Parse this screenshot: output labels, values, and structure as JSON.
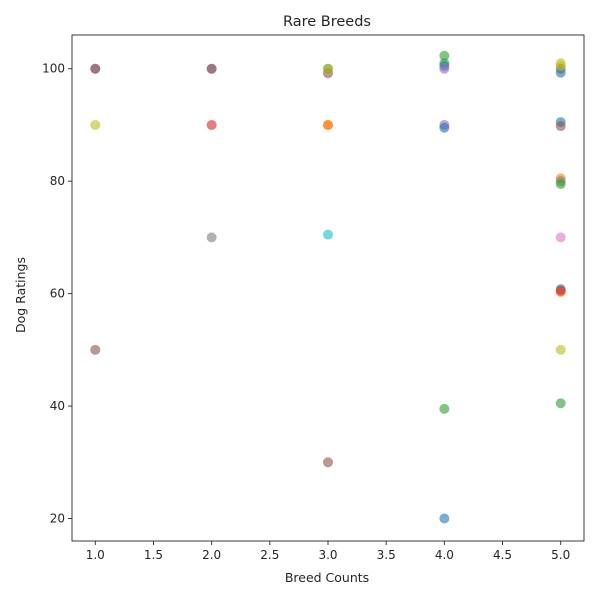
{
  "chart_data": {
    "type": "scatter",
    "title": "Rare Breeds",
    "xlabel": "Breed Counts",
    "ylabel": "Dog Ratings",
    "xlim": [
      0.8,
      5.2
    ],
    "ylim": [
      16,
      106
    ],
    "xticks": [
      1.0,
      1.5,
      2.0,
      2.5,
      3.0,
      3.5,
      4.0,
      4.5,
      5.0
    ],
    "xtick_labels": [
      "1.0",
      "1.5",
      "2.0",
      "2.5",
      "3.0",
      "3.5",
      "4.0",
      "4.5",
      "5.0"
    ],
    "yticks": [
      20,
      40,
      60,
      80,
      100
    ],
    "ytick_labels": [
      "20",
      "40",
      "60",
      "80",
      "100"
    ],
    "grid": false,
    "legend": false,
    "marker_alpha": 0.6,
    "points": [
      {
        "x": 1.0,
        "y": 100,
        "color": "#9467bd"
      },
      {
        "x": 1.0,
        "y": 100,
        "color": "#8c564b"
      },
      {
        "x": 1.0,
        "y": 90,
        "color": "#bcbd22"
      },
      {
        "x": 1.0,
        "y": 50,
        "color": "#8c564b"
      },
      {
        "x": 2.0,
        "y": 100,
        "color": "#9467bd"
      },
      {
        "x": 2.0,
        "y": 100,
        "color": "#8c564b"
      },
      {
        "x": 2.0,
        "y": 90,
        "color": "#d62728"
      },
      {
        "x": 2.0,
        "y": 70,
        "color": "#7f7f7f"
      },
      {
        "x": 3.0,
        "y": 100,
        "color": "#2ca02c"
      },
      {
        "x": 3.0,
        "y": 99.2,
        "color": "#8c564b"
      },
      {
        "x": 3.0,
        "y": 100,
        "color": "#bcbd22"
      },
      {
        "x": 3.0,
        "y": 90,
        "color": "#ff7f0e"
      },
      {
        "x": 3.0,
        "y": 90,
        "color": "#ff7f0e"
      },
      {
        "x": 3.0,
        "y": 70.5,
        "color": "#17becf"
      },
      {
        "x": 3.0,
        "y": 30,
        "color": "#8c564b"
      },
      {
        "x": 4.0,
        "y": 102.3,
        "color": "#2ca02c"
      },
      {
        "x": 4.0,
        "y": 101,
        "color": "#2ca02c"
      },
      {
        "x": 4.0,
        "y": 100.5,
        "color": "#1f77b4"
      },
      {
        "x": 4.0,
        "y": 100,
        "color": "#9467bd"
      },
      {
        "x": 4.0,
        "y": 90,
        "color": "#9467bd"
      },
      {
        "x": 4.0,
        "y": 89.5,
        "color": "#1f77b4"
      },
      {
        "x": 4.0,
        "y": 39.5,
        "color": "#2ca02c"
      },
      {
        "x": 4.0,
        "y": 20,
        "color": "#1f77b4"
      },
      {
        "x": 5.0,
        "y": 101,
        "color": "#bcbd22"
      },
      {
        "x": 5.0,
        "y": 100,
        "color": "#8c564b"
      },
      {
        "x": 5.0,
        "y": 99.3,
        "color": "#1f77b4"
      },
      {
        "x": 5.0,
        "y": 100.5,
        "color": "#bcbd22"
      },
      {
        "x": 5.0,
        "y": 90.5,
        "color": "#1f77b4"
      },
      {
        "x": 5.0,
        "y": 89.8,
        "color": "#8c564b"
      },
      {
        "x": 5.0,
        "y": 80.5,
        "color": "#ff7f0e"
      },
      {
        "x": 5.0,
        "y": 80,
        "color": "#7f7f7f"
      },
      {
        "x": 5.0,
        "y": 79.5,
        "color": "#2ca02c"
      },
      {
        "x": 5.0,
        "y": 70,
        "color": "#e377c2"
      },
      {
        "x": 5.0,
        "y": 60.8,
        "color": "#1f77b4"
      },
      {
        "x": 5.0,
        "y": 60.3,
        "color": "#ff7f0e"
      },
      {
        "x": 5.0,
        "y": 60.5,
        "color": "#d62728"
      },
      {
        "x": 5.0,
        "y": 50,
        "color": "#bcbd22"
      },
      {
        "x": 5.0,
        "y": 40.5,
        "color": "#2ca02c"
      }
    ]
  }
}
